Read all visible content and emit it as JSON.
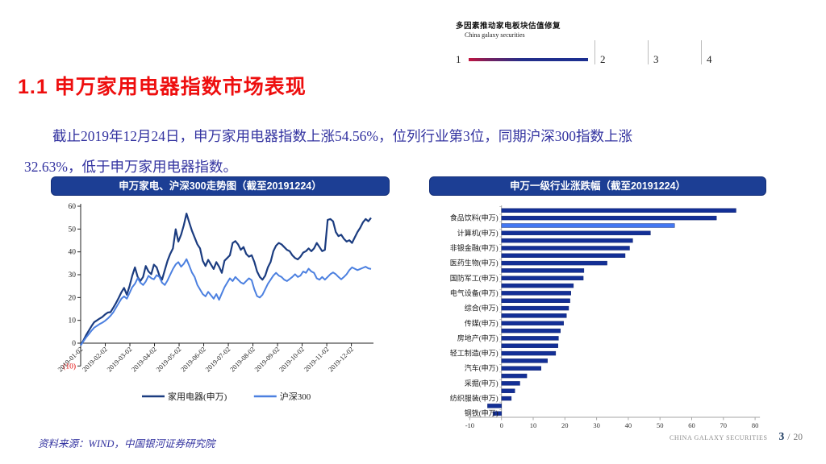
{
  "deck_header": {
    "title": "多因素推动家电板块估值修复",
    "subtitle": "China galaxy securities",
    "sections": [
      {
        "num": "1",
        "active": true
      },
      {
        "num": "2",
        "active": false
      },
      {
        "num": "3",
        "active": false
      },
      {
        "num": "4",
        "active": false
      }
    ],
    "progress_gradient": [
      "#C21440",
      "#1B2F91"
    ]
  },
  "page": {
    "title": "1.1 申万家用电器指数市场表现"
  },
  "body_text": {
    "line1": "截止2019年12月24日，申万家用电器指数上涨54.56%，位列行业第3位，同期沪深300指数上涨",
    "line2": "32.63%，低于申万家用电器指数。"
  },
  "chart_data": [
    {
      "type": "line",
      "title": "申万家电、沪深300走势图（截至20191224）",
      "ylim": [
        -10,
        60
      ],
      "grid": false,
      "legend_position": "bottom",
      "y_ticks": [
        {
          "label": "60",
          "value": 60,
          "negative": false
        },
        {
          "label": "50",
          "value": 50,
          "negative": false
        },
        {
          "label": "40",
          "value": 40,
          "negative": false
        },
        {
          "label": "30",
          "value": 30,
          "negative": false
        },
        {
          "label": "20",
          "value": 20,
          "negative": false
        },
        {
          "label": "10",
          "value": 10,
          "negative": false
        },
        {
          "label": "0",
          "value": 0,
          "negative": false
        },
        {
          "label": "(10)",
          "value": -10,
          "negative": true
        }
      ],
      "negative_tick_color": "#E00000",
      "x_labels": [
        "2019-01-02",
        "2019-02-02",
        "2019-03-02",
        "2019-04-02",
        "2019-05-02",
        "2019-06-02",
        "2019-07-02",
        "2019-08-02",
        "2019-09-02",
        "2019-10-02",
        "2019-11-02",
        "2019-12-02"
      ],
      "series": [
        {
          "name": "家用电器(申万)",
          "color": "#1B3C80",
          "width": 2.2,
          "values": [
            -0.8,
            1.2,
            3.5,
            5.5,
            7.5,
            9.2,
            10.0,
            10.8,
            11.5,
            12.6,
            13.4,
            13.6,
            15.5,
            17.5,
            19.8,
            22.3,
            24.2,
            21.2,
            25.0,
            29.5,
            33.2,
            29.0,
            27.2,
            29.0,
            33.8,
            31.4,
            30.2,
            34.4,
            33.2,
            29.6,
            27.8,
            32.0,
            36.1,
            39.1,
            41.5,
            49.9,
            44.5,
            47.5,
            51.7,
            56.8,
            52.9,
            49.3,
            46.3,
            43.3,
            41.5,
            36.1,
            33.8,
            36.5,
            34.5,
            32.5,
            35.5,
            33.5,
            30.8,
            36.1,
            37.3,
            38.5,
            43.9,
            44.7,
            43.3,
            40.9,
            42.1,
            39.1,
            37.9,
            38.5,
            35.6,
            31.4,
            29.0,
            27.8,
            29.6,
            33.2,
            35.6,
            40.3,
            42.7,
            43.9,
            43.3,
            42.1,
            40.9,
            40.3,
            38.5,
            37.3,
            36.7,
            37.9,
            39.7,
            40.3,
            41.5,
            40.3,
            41.5,
            43.9,
            42.1,
            40.3,
            40.9,
            54.0,
            54.4,
            53.4,
            48.7,
            46.9,
            47.5,
            45.7,
            44.5,
            45.1,
            43.9,
            46.3,
            48.7,
            50.5,
            52.9,
            54.4,
            53.4,
            54.9
          ]
        },
        {
          "name": "沪深300",
          "color": "#4C80E0",
          "width": 2.0,
          "values": [
            -1.0,
            0.8,
            2.5,
            4.0,
            5.5,
            6.8,
            7.6,
            8.4,
            9.0,
            9.8,
            10.8,
            12.0,
            13.5,
            15.5,
            17.5,
            19.5,
            20.5,
            19.5,
            22.0,
            24.5,
            26.0,
            28.5,
            26.5,
            25.5,
            27.0,
            29.5,
            28.5,
            28.0,
            29.8,
            29.0,
            26.5,
            25.5,
            27.5,
            30.0,
            32.5,
            34.5,
            35.5,
            33.5,
            34.8,
            36.8,
            34.0,
            31.0,
            29.0,
            25.5,
            23.5,
            21.5,
            20.5,
            22.5,
            21.0,
            19.5,
            21.5,
            19.0,
            21.8,
            24.5,
            26.5,
            28.4,
            27.2,
            29.0,
            27.8,
            26.6,
            26.0,
            27.2,
            28.4,
            27.6,
            23.6,
            20.6,
            20.0,
            21.2,
            23.6,
            26.0,
            27.8,
            29.6,
            30.8,
            29.6,
            29.0,
            27.8,
            27.2,
            28.1,
            29.0,
            30.2,
            29.0,
            29.6,
            31.4,
            30.8,
            32.6,
            31.4,
            30.8,
            28.4,
            27.8,
            29.0,
            27.8,
            29.0,
            30.2,
            31.0,
            30.2,
            29.0,
            28.0,
            29.0,
            30.2,
            32.0,
            33.2,
            32.6,
            32.0,
            32.5,
            33.0,
            33.5,
            32.8,
            32.5
          ]
        }
      ]
    },
    {
      "type": "bar",
      "orientation": "horizontal",
      "title": "申万一级行业涨跌幅（截至20191224）",
      "xlim": [
        -10,
        80
      ],
      "x_ticks": [
        -10,
        0,
        10,
        20,
        30,
        40,
        50,
        60,
        70,
        80
      ],
      "colors": {
        "bar": "#132F96",
        "highlight": "#4377F2"
      },
      "bars": [
        {
          "label": "",
          "value": 74.0,
          "hl": false
        },
        {
          "label": "食品饮料(申万)",
          "value": 67.8,
          "hl": false
        },
        {
          "label": "",
          "value": 54.6,
          "hl": true
        },
        {
          "label": "计算机(申万)",
          "value": 47.0,
          "hl": false
        },
        {
          "label": "",
          "value": 41.4,
          "hl": false
        },
        {
          "label": "非银金融(申万)",
          "value": 40.4,
          "hl": false
        },
        {
          "label": "",
          "value": 39.0,
          "hl": false
        },
        {
          "label": "医药生物(申万)",
          "value": 33.3,
          "hl": false
        },
        {
          "label": "",
          "value": 26.0,
          "hl": false
        },
        {
          "label": "国防军工(申万)",
          "value": 25.8,
          "hl": false
        },
        {
          "label": "",
          "value": 22.7,
          "hl": false
        },
        {
          "label": "电气设备(申万)",
          "value": 21.9,
          "hl": false
        },
        {
          "label": "",
          "value": 21.6,
          "hl": false
        },
        {
          "label": "综合(申万)",
          "value": 21.2,
          "hl": false
        },
        {
          "label": "",
          "value": 20.5,
          "hl": false
        },
        {
          "label": "传媒(申万)",
          "value": 19.6,
          "hl": false
        },
        {
          "label": "",
          "value": 18.6,
          "hl": false
        },
        {
          "label": "房地产(申万)",
          "value": 18.0,
          "hl": false
        },
        {
          "label": "",
          "value": 17.8,
          "hl": false
        },
        {
          "label": "轻工制造(申万)",
          "value": 17.1,
          "hl": false
        },
        {
          "label": "",
          "value": 14.5,
          "hl": false
        },
        {
          "label": "汽车(申万)",
          "value": 12.5,
          "hl": false
        },
        {
          "label": "",
          "value": 8.0,
          "hl": false
        },
        {
          "label": "采掘(申万)",
          "value": 5.8,
          "hl": false
        },
        {
          "label": "",
          "value": 4.2,
          "hl": false
        },
        {
          "label": "纺织服装(申万)",
          "value": 3.1,
          "hl": false
        },
        {
          "label": "",
          "value": -4.4,
          "hl": false
        },
        {
          "label": "钢铁(申万)",
          "value": -2.7,
          "hl": false
        }
      ]
    }
  ],
  "footer": {
    "source": "资料来源：WIND，中国银河证券研究院",
    "brand": "CHINA GALAXY SECURITIES",
    "page_num": "3",
    "page_sep": "/",
    "page_total": "20"
  }
}
